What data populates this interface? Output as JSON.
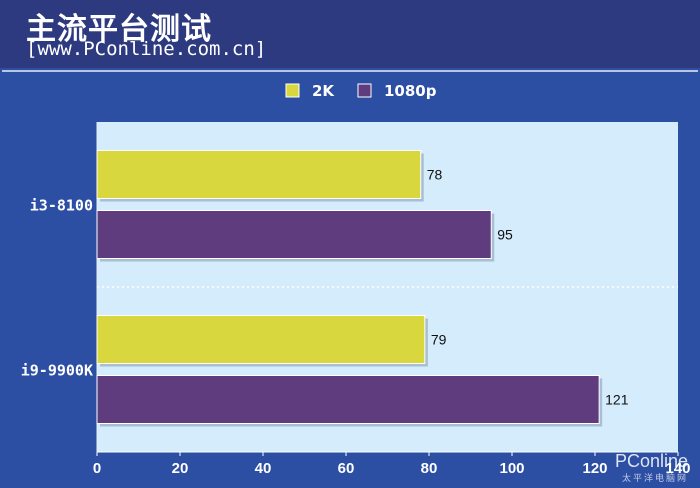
{
  "header": {
    "title": "主流平台测试",
    "subtitle": "[www.PConline.com.cn]"
  },
  "watermark": {
    "brand": "PConline",
    "tagline": "太平洋电脑网"
  },
  "colors": {
    "series_2k": "#d8d83e",
    "series_1080p": "#5e3c7e",
    "plot_bg": "#d4ecfb",
    "background": "#2c4fa3",
    "header_bg": "#2e3a80"
  },
  "chart_data": {
    "type": "bar",
    "orientation": "horizontal",
    "categories": [
      "i3-8100",
      "i9-9900K"
    ],
    "series": [
      {
        "name": "2K",
        "values": [
          78,
          79
        ]
      },
      {
        "name": "1080p",
        "values": [
          95,
          121
        ]
      }
    ],
    "xlim": [
      0,
      140
    ],
    "xticks": [
      0,
      20,
      40,
      60,
      80,
      100,
      120,
      140
    ],
    "legend_position": "top-center",
    "data_labels": true,
    "grid": false
  }
}
